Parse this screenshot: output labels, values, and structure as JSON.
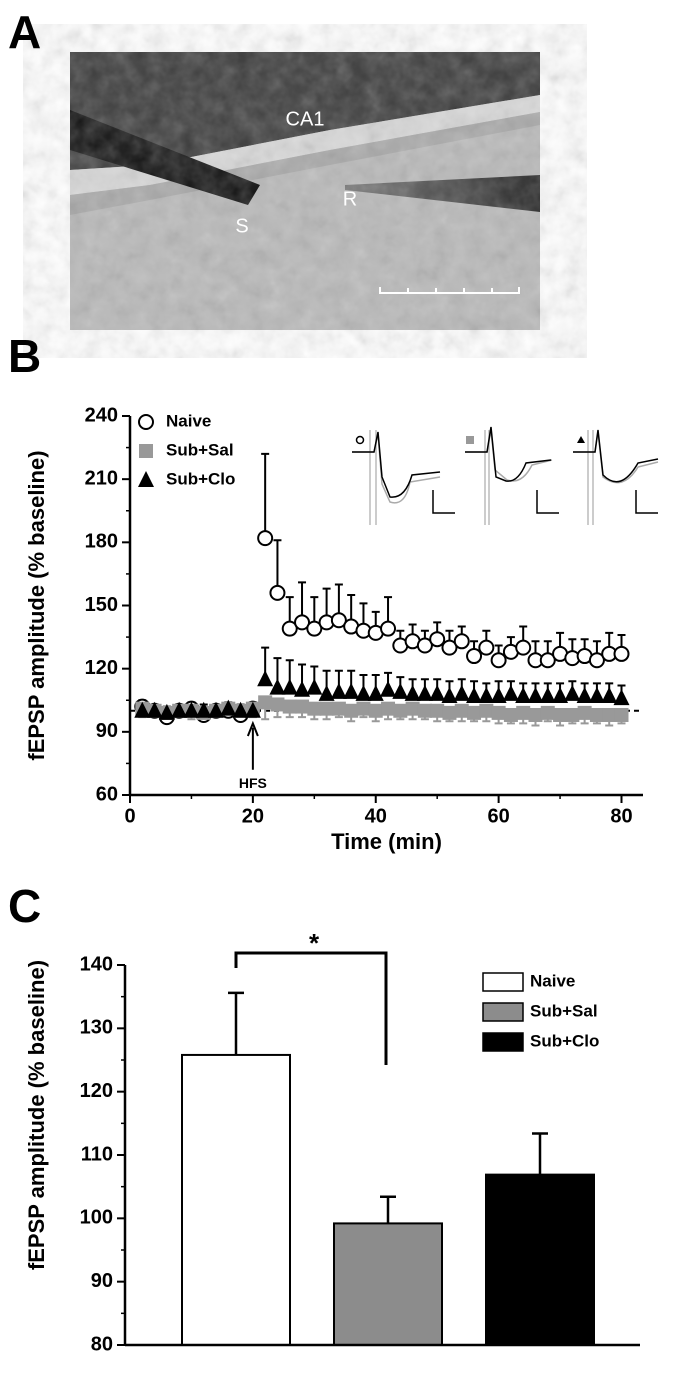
{
  "figure": {
    "panel_labels": [
      "A",
      "B",
      "C"
    ],
    "image_labels": [
      "CA1",
      "S",
      "R"
    ]
  },
  "chart_data": [
    {
      "type": "scatter",
      "xlabel": "Time (min)",
      "ylabel": "fEPSP amplitude (% baseline)",
      "x": [
        2,
        4,
        6,
        8,
        10,
        12,
        14,
        16,
        18,
        20,
        22,
        24,
        26,
        28,
        30,
        32,
        34,
        36,
        38,
        40,
        42,
        44,
        46,
        48,
        50,
        52,
        54,
        56,
        58,
        60,
        62,
        64,
        66,
        68,
        70,
        72,
        74,
        76,
        78,
        80
      ],
      "series": [
        {
          "name": "Naive",
          "color": "#000000",
          "marker": "circle-open",
          "error_direction": "up",
          "values": [
            102,
            100,
            97,
            100,
            101,
            98,
            100,
            100,
            98,
            101,
            182,
            156,
            139,
            142,
            139,
            142,
            143,
            140,
            138,
            137,
            139,
            131,
            133,
            131,
            134,
            130,
            133,
            126,
            130,
            124,
            128,
            130,
            124,
            124,
            127,
            125,
            126,
            124,
            127,
            127
          ],
          "errors": [
            3,
            3,
            3,
            3,
            3,
            3,
            3,
            3,
            3,
            3,
            40,
            25,
            15,
            19,
            15,
            16,
            17,
            15,
            13,
            10,
            15,
            7,
            8,
            7,
            8,
            8,
            7,
            7,
            8,
            7,
            7,
            10,
            9,
            9,
            10,
            9,
            8,
            9,
            10,
            9
          ]
        },
        {
          "name": "Sub+Sal",
          "color": "#999999",
          "marker": "square",
          "error_direction": "down",
          "values": [
            101,
            100,
            99,
            100,
            100,
            99,
            100,
            101,
            100,
            101,
            104,
            103,
            102,
            102,
            101,
            101,
            101,
            100,
            101,
            100,
            101,
            100,
            101,
            100,
            100,
            99,
            100,
            99,
            100,
            99,
            98,
            99,
            98,
            99,
            98,
            98,
            99,
            98,
            98,
            98
          ],
          "errors": [
            4,
            3,
            4,
            3,
            4,
            3,
            3,
            4,
            4,
            4,
            8,
            6,
            5,
            5,
            5,
            5,
            4,
            5,
            4,
            5,
            5,
            4,
            5,
            4,
            5,
            4,
            5,
            4,
            5,
            5,
            4,
            5,
            5,
            4,
            5,
            4,
            5,
            4,
            5,
            4
          ]
        },
        {
          "name": "Sub+Clo",
          "color": "#000000",
          "marker": "triangle",
          "error_direction": "up",
          "values": [
            100,
            100,
            99,
            100,
            100,
            100,
            100,
            101,
            100,
            100,
            115,
            111,
            111,
            110,
            111,
            108,
            109,
            109,
            108,
            108,
            110,
            109,
            108,
            108,
            108,
            107,
            108,
            107,
            107,
            107,
            108,
            107,
            107,
            107,
            107,
            108,
            107,
            107,
            107,
            106
          ],
          "errors": [
            3,
            3,
            3,
            3,
            3,
            3,
            3,
            3,
            3,
            3,
            15,
            14,
            13,
            12,
            10,
            11,
            10,
            10,
            9,
            9,
            8,
            7,
            7,
            7,
            7,
            7,
            7,
            7,
            6,
            7,
            6,
            6,
            6,
            6,
            6,
            6,
            6,
            6,
            6,
            6
          ]
        }
      ],
      "reference_line": 100,
      "annotation": {
        "text": "HFS",
        "x": 20
      },
      "xlim": [
        0,
        83.5
      ],
      "xticks": [
        0,
        20,
        40,
        60,
        80
      ],
      "ylim": [
        60,
        240
      ],
      "yticks": [
        60,
        90,
        120,
        150,
        180,
        210,
        240
      ]
    },
    {
      "type": "bar",
      "ylabel": "fEPSP amplitude (% baseline)",
      "series": [
        {
          "name": "Naive",
          "color": "#ffffff",
          "values": [
            125.8
          ],
          "errors": [
            9.8
          ]
        },
        {
          "name": "Sub+Sal",
          "color": "#8c8c8c",
          "values": [
            99.2
          ],
          "errors": [
            4.2
          ]
        },
        {
          "name": "Sub+Clo",
          "color": "#000000",
          "values": [
            106.9
          ],
          "errors": [
            6.5
          ]
        }
      ],
      "annotation": "*",
      "ylim": [
        80,
        140
      ],
      "yticks": [
        80,
        90,
        100,
        110,
        120,
        130,
        140
      ]
    }
  ]
}
